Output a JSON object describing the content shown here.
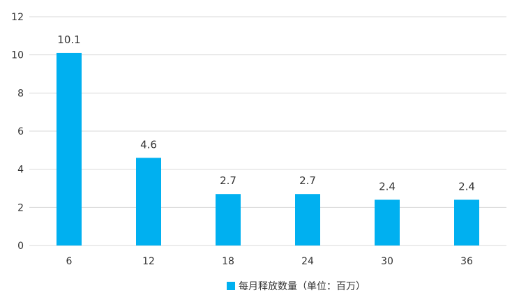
{
  "chart_data": {
    "type": "bar",
    "categories": [
      "6",
      "12",
      "18",
      "24",
      "30",
      "36"
    ],
    "series": [
      {
        "name": "每月释放数量（单位：百万）",
        "values": [
          10.1,
          4.6,
          2.7,
          2.7,
          2.4,
          2.4
        ]
      }
    ],
    "data_labels": [
      "10.1",
      "4.6",
      "2.7",
      "2.7",
      "2.4",
      "2.4"
    ],
    "y_ticks": [
      "0",
      "2",
      "4",
      "6",
      "8",
      "10",
      "12"
    ],
    "ylim": [
      0,
      12
    ],
    "grid": true,
    "legend_position": "bottom-center",
    "colors": {
      "bar": "#00B0F0",
      "grid": "#D9D9D9",
      "text": "#333333"
    }
  }
}
